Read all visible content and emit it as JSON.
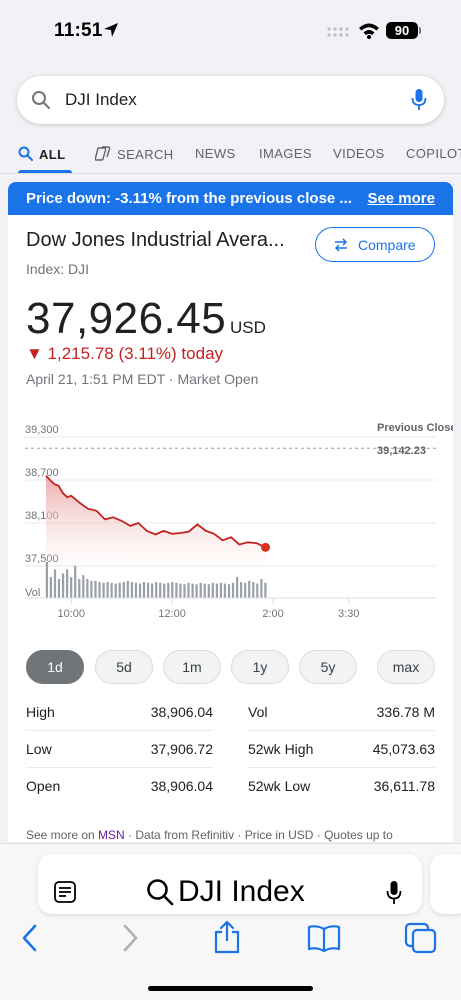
{
  "status": {
    "time": "11:51",
    "battery": "90"
  },
  "search": {
    "query": "DJI Index"
  },
  "tabs": [
    {
      "label": "ALL",
      "active": true
    },
    {
      "label": "SEARCH"
    },
    {
      "label": "NEWS"
    },
    {
      "label": "IMAGES"
    },
    {
      "label": "VIDEOS"
    },
    {
      "label": "COPILOT"
    }
  ],
  "banner": {
    "text": "Price down: -3.11% from the previous close ...",
    "link": "See more"
  },
  "quote": {
    "name": "Dow Jones Industrial Avera...",
    "ticker": "Index: DJI",
    "compare_label": "Compare",
    "price": "37,926.45",
    "currency": "USD",
    "change": "▼ 1,215.78 (3.11%) today",
    "as_of": "April 21, 1:51 PM EDT · Market Open"
  },
  "chart_data": {
    "type": "area",
    "y_tick_labels": [
      "39,300",
      "38,700",
      "38,100",
      "37,500"
    ],
    "y_ticks": [
      39300,
      38700,
      38100,
      37500
    ],
    "ylim": [
      37500,
      39300
    ],
    "x_tick_labels": [
      "10:00",
      "12:00",
      "2:00",
      "3:30"
    ],
    "x_ticks": [
      10.0,
      12.0,
      14.0,
      15.5
    ],
    "xlim": [
      9.5,
      16.0
    ],
    "previous_close_label": "Previous Close:",
    "previous_close": "39,142.23",
    "previous_close_value": 39142.23,
    "volume_label": "Vol",
    "series": [
      {
        "x": [
          9.5,
          9.58,
          9.67,
          9.75,
          9.83,
          9.92,
          10.0,
          10.17,
          10.33,
          10.5,
          10.67,
          10.83,
          11.0,
          11.17,
          11.33,
          11.5,
          11.67,
          11.83,
          12.0,
          12.17,
          12.33,
          12.5,
          12.67,
          12.83,
          13.0,
          13.17,
          13.33,
          13.5,
          13.67,
          13.85
        ],
        "y": [
          38760,
          38700,
          38640,
          38620,
          38520,
          38460,
          38480,
          38380,
          38300,
          38270,
          38150,
          38180,
          38130,
          38060,
          38100,
          37990,
          37940,
          37990,
          37950,
          37960,
          37980,
          38080,
          37990,
          37950,
          37860,
          37900,
          37800,
          37830,
          37820,
          37760
        ]
      }
    ],
    "volume_relative": [
      0.95,
      0.55,
      0.75,
      0.5,
      0.65,
      0.75,
      0.55,
      0.85,
      0.5,
      0.6,
      0.5,
      0.45,
      0.45,
      0.42,
      0.4,
      0.42,
      0.4,
      0.38,
      0.4,
      0.42,
      0.45,
      0.42,
      0.4,
      0.38,
      0.42,
      0.4,
      0.38,
      0.42,
      0.4,
      0.38,
      0.4,
      0.42,
      0.4,
      0.38,
      0.36,
      0.4,
      0.38,
      0.36,
      0.4,
      0.38,
      0.36,
      0.4,
      0.38,
      0.4,
      0.38,
      0.36,
      0.4,
      0.55,
      0.42,
      0.4,
      0.45,
      0.42,
      0.38,
      0.5,
      0.4
    ],
    "colors": {
      "line": "#c5221f",
      "dot": "#d93025",
      "volume": "#9aa0a6"
    }
  },
  "ranges": [
    {
      "label": "1d",
      "active": true
    },
    {
      "label": "5d"
    },
    {
      "label": "1m"
    },
    {
      "label": "1y"
    },
    {
      "label": "5y"
    },
    {
      "label": "max"
    }
  ],
  "stats": [
    {
      "label": "High",
      "value": "38,906.04",
      "label2": "Vol",
      "value2": "336.78 M"
    },
    {
      "label": "Low",
      "value": "37,906.72",
      "label2": "52wk High",
      "value2": "45,073.63"
    },
    {
      "label": "Open",
      "value": "38,906.04",
      "label2": "52wk Low",
      "value2": "36,611.78"
    }
  ],
  "footnote": {
    "prefix": "See more on ",
    "source": "MSN",
    "suffix": " · Data from Refinitiv · Price in USD · Quotes up to"
  },
  "address_bar": {
    "query": "DJI Index"
  },
  "colors": {
    "accent": "#1a73e8",
    "down": "#c5221f"
  }
}
